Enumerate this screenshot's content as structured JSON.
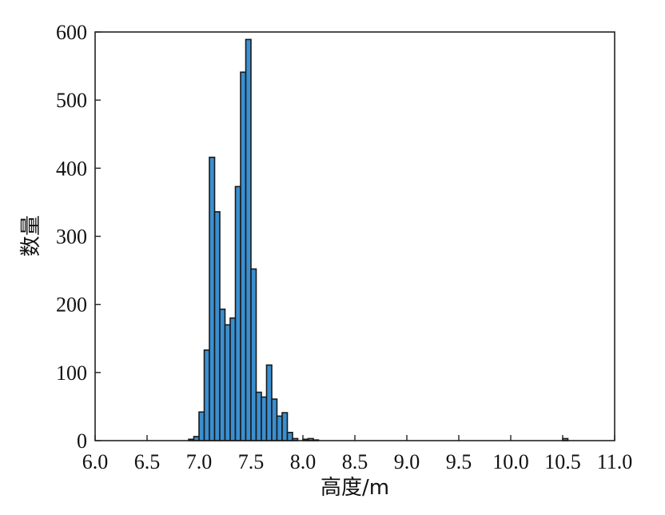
{
  "chart_data": {
    "type": "bar",
    "xlabel": "高度/m",
    "ylabel": "数量",
    "xlim": [
      6.0,
      11.0
    ],
    "ylim": [
      0,
      600
    ],
    "xticks": [
      "6.0",
      "6.5",
      "7.0",
      "7.5",
      "8.0",
      "8.5",
      "9.0",
      "9.5",
      "10.0",
      "10.5",
      "11.0"
    ],
    "yticks": [
      "0",
      "100",
      "200",
      "300",
      "400",
      "500",
      "600"
    ],
    "bin_width": 0.05,
    "bins": [
      {
        "x": 6.9,
        "value": 2
      },
      {
        "x": 6.95,
        "value": 6
      },
      {
        "x": 7.0,
        "value": 42
      },
      {
        "x": 7.05,
        "value": 133
      },
      {
        "x": 7.1,
        "value": 416
      },
      {
        "x": 7.15,
        "value": 336
      },
      {
        "x": 7.2,
        "value": 193
      },
      {
        "x": 7.25,
        "value": 170
      },
      {
        "x": 7.3,
        "value": 180
      },
      {
        "x": 7.35,
        "value": 373
      },
      {
        "x": 7.4,
        "value": 541
      },
      {
        "x": 7.45,
        "value": 589
      },
      {
        "x": 7.5,
        "value": 252
      },
      {
        "x": 7.55,
        "value": 71
      },
      {
        "x": 7.6,
        "value": 64
      },
      {
        "x": 7.65,
        "value": 111
      },
      {
        "x": 7.7,
        "value": 61
      },
      {
        "x": 7.75,
        "value": 36
      },
      {
        "x": 7.8,
        "value": 41
      },
      {
        "x": 7.85,
        "value": 12
      },
      {
        "x": 7.9,
        "value": 3
      },
      {
        "x": 8.0,
        "value": 2
      },
      {
        "x": 8.05,
        "value": 3
      },
      {
        "x": 8.1,
        "value": 1
      },
      {
        "x": 10.5,
        "value": 3
      }
    ],
    "colors": {
      "bar": "#3a8fd0",
      "edge": "#1a1a1a"
    }
  }
}
